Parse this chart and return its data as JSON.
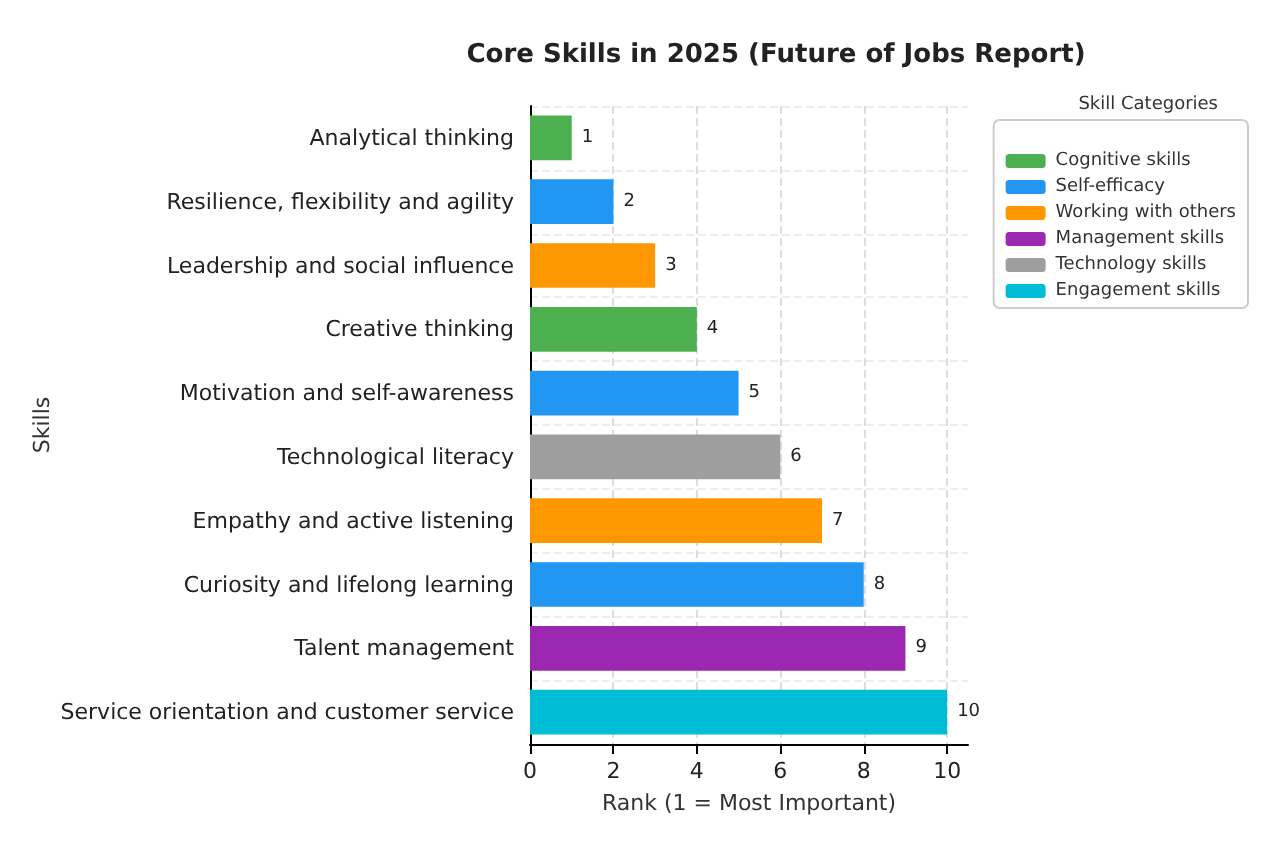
{
  "chart_data": {
    "type": "bar",
    "orientation": "horizontal",
    "stacked": true,
    "title": "Core Skills in 2025 (Future of Jobs Report)",
    "xlabel": "Rank (1 = Most Important)",
    "ylabel": "Skills",
    "legend_title": "Skill Categories",
    "categories": [
      "Analytical thinking",
      "Resilience, flexibility and agility",
      "Leadership and social influence",
      "Creative thinking",
      "Motivation and self-awareness",
      "Technological literacy",
      "Empathy and active listening",
      "Curiosity and lifelong learning",
      "Talent management",
      "Service orientation and customer service"
    ],
    "series": [
      {
        "name": "Cognitive skills",
        "color": "#4caf50",
        "values": [
          1,
          null,
          null,
          4,
          null,
          null,
          null,
          null,
          null,
          null
        ]
      },
      {
        "name": "Self-efficacy",
        "color": "#2196f3",
        "values": [
          null,
          2,
          null,
          null,
          5,
          null,
          null,
          8,
          null,
          null
        ]
      },
      {
        "name": "Working with others",
        "color": "#ff9800",
        "values": [
          null,
          null,
          3,
          null,
          null,
          null,
          7,
          null,
          null,
          null
        ]
      },
      {
        "name": "Management skills",
        "color": "#9c27b0",
        "values": [
          null,
          null,
          null,
          null,
          null,
          null,
          null,
          null,
          9,
          null
        ]
      },
      {
        "name": "Technology skills",
        "color": "#9e9e9e",
        "values": [
          null,
          null,
          null,
          null,
          null,
          6,
          null,
          null,
          null,
          null
        ]
      },
      {
        "name": "Engagement skills",
        "color": "#00bcd4",
        "values": [
          null,
          null,
          null,
          null,
          null,
          null,
          null,
          null,
          null,
          10
        ]
      }
    ],
    "xlim": [
      0,
      10.5
    ],
    "xticks": [
      0,
      2,
      4,
      6,
      8,
      10
    ],
    "grid": true,
    "legend": "right",
    "data_labels": true
  }
}
